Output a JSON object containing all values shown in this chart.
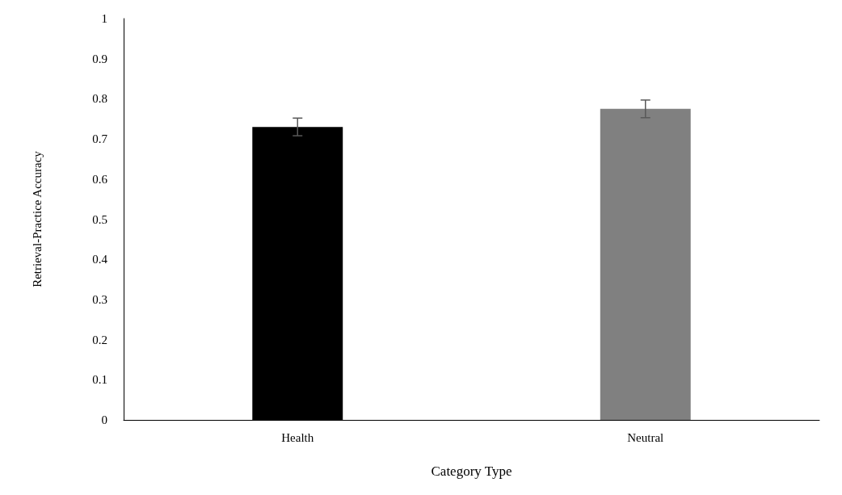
{
  "chart_data": {
    "type": "bar",
    "xlabel": "Category Type",
    "ylabel": "Retrieval-Practice Accuracy",
    "categories": [
      "Health",
      "Neutral"
    ],
    "values": [
      0.73,
      0.775
    ],
    "colors": [
      "#000000",
      "#808080"
    ],
    "errors": [
      0.022,
      0.022
    ],
    "ylim": [
      0,
      1
    ],
    "yticks": [
      0,
      0.1,
      0.2,
      0.3,
      0.4,
      0.5,
      0.6,
      0.7,
      0.8,
      0.9,
      1
    ],
    "grid": false
  }
}
